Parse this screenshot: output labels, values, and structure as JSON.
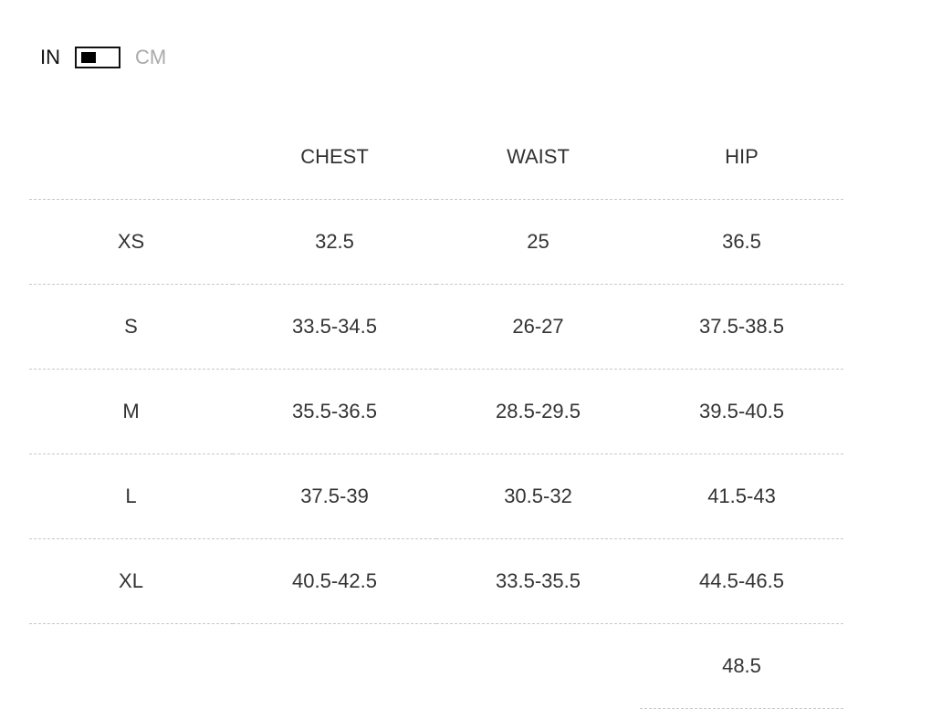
{
  "unit_toggle": {
    "left_label": "IN",
    "right_label": "CM",
    "selected": "IN"
  },
  "table": {
    "headers": [
      "",
      "CHEST",
      "WAIST",
      "HIP"
    ],
    "rows": [
      [
        "XS",
        "32.5",
        "25",
        "36.5"
      ],
      [
        "S",
        "33.5-34.5",
        "26-27",
        "37.5-38.5"
      ],
      [
        "M",
        "35.5-36.5",
        "28.5-29.5",
        "39.5-40.5"
      ],
      [
        "L",
        "37.5-39",
        "30.5-32",
        "41.5-43"
      ],
      [
        "XL",
        "40.5-42.5",
        "33.5-35.5",
        "44.5-46.5"
      ],
      [
        "",
        "",
        "",
        "48.5"
      ]
    ]
  }
}
